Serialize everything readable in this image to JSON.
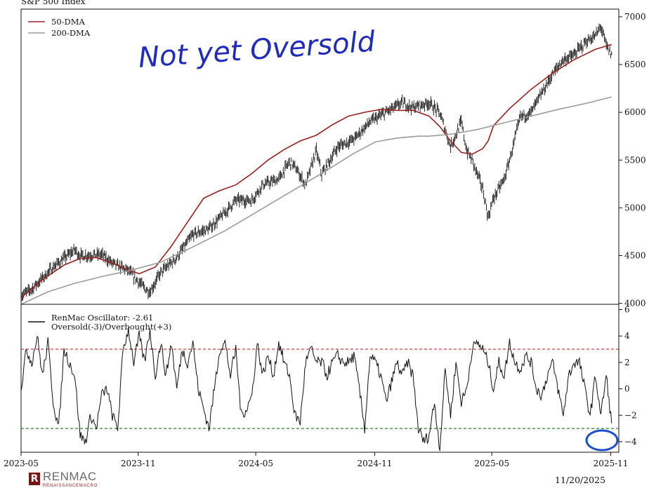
{
  "chart_data": [
    {
      "type": "line",
      "title": "S&P 500 Index",
      "y_axis_side": "right",
      "ylim": [
        3990,
        7080
      ],
      "yticks": [
        4000,
        4500,
        5000,
        5500,
        6000,
        6500,
        7000
      ],
      "legend_position": "top-left",
      "annotation": "Not yet Oversold",
      "x_range": [
        "2023-05",
        "2025-11"
      ],
      "series": [
        {
          "name": "",
          "color": "#111111",
          "kind": "ohlc-close",
          "anchors": [
            [
              0,
              4080
            ],
            [
              2,
              4150
            ],
            [
              6,
              4380
            ],
            [
              10,
              4560
            ],
            [
              11,
              4500
            ],
            [
              15,
              4510
            ],
            [
              17,
              4420
            ],
            [
              20,
              4340
            ],
            [
              23,
              4160
            ],
            [
              24,
              4120
            ],
            [
              26,
              4320
            ],
            [
              29,
              4480
            ],
            [
              32,
              4720
            ],
            [
              35,
              4780
            ],
            [
              38,
              4950
            ],
            [
              40,
              5080
            ],
            [
              43,
              5080
            ],
            [
              45,
              5240
            ],
            [
              48,
              5300
            ],
            [
              50,
              5480
            ],
            [
              51,
              5430
            ],
            [
              53,
              5240
            ],
            [
              55,
              5600
            ],
            [
              56,
              5350
            ],
            [
              59,
              5640
            ],
            [
              62,
              5720
            ],
            [
              65,
              5900
            ],
            [
              68,
              6000
            ],
            [
              71,
              6100
            ],
            [
              73,
              6050
            ],
            [
              76,
              6100
            ],
            [
              78,
              5990
            ],
            [
              80,
              5640
            ],
            [
              82,
              5900
            ],
            [
              83,
              5600
            ],
            [
              84,
              5500
            ],
            [
              86,
              5200
            ],
            [
              87,
              4900
            ],
            [
              88,
              5100
            ],
            [
              90,
              5300
            ],
            [
              91,
              5500
            ],
            [
              93,
              5950
            ],
            [
              95,
              6000
            ],
            [
              97,
              6200
            ],
            [
              99,
              6400
            ],
            [
              101,
              6550
            ],
            [
              103,
              6600
            ],
            [
              105,
              6730
            ],
            [
              107,
              6800
            ],
            [
              108,
              6900
            ],
            [
              109,
              6700
            ],
            [
              110,
              6600
            ]
          ]
        },
        {
          "name": "50-DMA",
          "color": "#9b2020",
          "anchors": [
            [
              0,
              4060
            ],
            [
              4,
              4250
            ],
            [
              8,
              4400
            ],
            [
              11,
              4470
            ],
            [
              14,
              4480
            ],
            [
              17,
              4420
            ],
            [
              20,
              4350
            ],
            [
              22,
              4310
            ],
            [
              25,
              4380
            ],
            [
              28,
              4600
            ],
            [
              31,
              4850
            ],
            [
              34,
              5100
            ],
            [
              37,
              5180
            ],
            [
              40,
              5240
            ],
            [
              43,
              5360
            ],
            [
              46,
              5500
            ],
            [
              49,
              5610
            ],
            [
              52,
              5700
            ],
            [
              55,
              5760
            ],
            [
              58,
              5870
            ],
            [
              61,
              5960
            ],
            [
              64,
              6000
            ],
            [
              67,
              6030
            ],
            [
              70,
              6020
            ],
            [
              73,
              6020
            ],
            [
              76,
              5960
            ],
            [
              78,
              5850
            ],
            [
              80,
              5700
            ],
            [
              82,
              5580
            ],
            [
              84,
              5560
            ],
            [
              86,
              5620
            ],
            [
              87,
              5700
            ],
            [
              88,
              5860
            ],
            [
              91,
              6040
            ],
            [
              95,
              6240
            ],
            [
              99,
              6410
            ],
            [
              103,
              6550
            ],
            [
              107,
              6660
            ],
            [
              110,
              6710
            ]
          ]
        },
        {
          "name": "200-DMA",
          "color": "#9c9c9c",
          "anchors": [
            [
              0,
              3990
            ],
            [
              5,
              4120
            ],
            [
              10,
              4210
            ],
            [
              15,
              4280
            ],
            [
              20,
              4340
            ],
            [
              26,
              4430
            ],
            [
              32,
              4590
            ],
            [
              38,
              4760
            ],
            [
              44,
              4960
            ],
            [
              50,
              5160
            ],
            [
              56,
              5360
            ],
            [
              62,
              5570
            ],
            [
              66,
              5690
            ],
            [
              70,
              5730
            ],
            [
              74,
              5750
            ],
            [
              76,
              5750
            ],
            [
              80,
              5770
            ],
            [
              85,
              5820
            ],
            [
              90,
              5890
            ],
            [
              95,
              5960
            ],
            [
              100,
              6030
            ],
            [
              105,
              6090
            ],
            [
              110,
              6160
            ]
          ]
        }
      ]
    },
    {
      "type": "line",
      "title": "",
      "y_axis_side": "right",
      "ylim": [
        -4.8,
        6.4
      ],
      "yticks": [
        -4,
        -2,
        0,
        2,
        4,
        6
      ],
      "reference_lines": [
        {
          "value": 3,
          "color": "#d02a2a",
          "style": "dashed"
        },
        {
          "value": -3,
          "color": "#2a8a2a",
          "style": "dashed"
        }
      ],
      "legend_position": "top-left",
      "legend_lines": [
        "RenMac Oscillator: -2.61",
        "Oversold(-3)/Overbought(+3)"
      ],
      "series": [
        {
          "name": "RenMac Oscillator",
          "color": "#111111",
          "anchors": [
            [
              0,
              0
            ],
            [
              1,
              3
            ],
            [
              2,
              2
            ],
            [
              3,
              4
            ],
            [
              4,
              1
            ],
            [
              5,
              3.5
            ],
            [
              6,
              -1
            ],
            [
              7,
              -3
            ],
            [
              8,
              3
            ],
            [
              10,
              1
            ],
            [
              11,
              -3.5
            ],
            [
              12,
              -4
            ],
            [
              13,
              -2
            ],
            [
              14,
              -3
            ],
            [
              15,
              -0.5
            ],
            [
              16,
              0
            ],
            [
              17,
              -2
            ],
            [
              18,
              -3
            ],
            [
              19,
              3
            ],
            [
              20,
              4.5
            ],
            [
              21,
              2
            ],
            [
              22,
              4
            ],
            [
              23,
              2
            ],
            [
              24,
              4.5
            ],
            [
              25,
              1
            ],
            [
              26,
              3.5
            ],
            [
              27,
              1
            ],
            [
              28,
              3.5
            ],
            [
              29,
              0
            ],
            [
              30,
              3
            ],
            [
              31,
              2
            ],
            [
              32,
              3.5
            ],
            [
              33,
              0
            ],
            [
              35,
              -3
            ],
            [
              36,
              0
            ],
            [
              37,
              3
            ],
            [
              38,
              3.5
            ],
            [
              39,
              1
            ],
            [
              40,
              3
            ],
            [
              41,
              -2
            ],
            [
              42,
              -1.5
            ],
            [
              43,
              -0.5
            ],
            [
              44,
              3.5
            ],
            [
              45,
              1
            ],
            [
              46,
              2.5
            ],
            [
              47,
              1
            ],
            [
              48,
              3.5
            ],
            [
              49,
              2
            ],
            [
              50,
              1
            ],
            [
              51,
              -2
            ],
            [
              52,
              -2.5
            ],
            [
              53,
              2
            ],
            [
              54,
              3
            ],
            [
              55,
              2
            ],
            [
              56,
              2
            ],
            [
              57,
              1
            ],
            [
              58,
              2
            ],
            [
              59,
              2.5
            ],
            [
              60,
              2
            ],
            [
              61,
              2
            ],
            [
              62,
              2.5
            ],
            [
              63,
              0
            ],
            [
              64,
              -3
            ],
            [
              65,
              2.5
            ],
            [
              66,
              2
            ],
            [
              67,
              1
            ],
            [
              68,
              -1
            ],
            [
              70,
              2
            ],
            [
              71,
              1
            ],
            [
              72,
              2
            ],
            [
              73,
              1
            ],
            [
              74,
              -3
            ],
            [
              75,
              -4
            ],
            [
              76,
              -3.5
            ],
            [
              77,
              -1
            ],
            [
              78,
              -4.5
            ],
            [
              79,
              1.5
            ],
            [
              80,
              -2
            ],
            [
              81,
              2
            ],
            [
              82,
              -1
            ],
            [
              83,
              0
            ],
            [
              84,
              3
            ],
            [
              85,
              3.5
            ],
            [
              86,
              3
            ],
            [
              87,
              2
            ],
            [
              88,
              0
            ],
            [
              89,
              2
            ],
            [
              90,
              1
            ],
            [
              91,
              3.5
            ],
            [
              92,
              2
            ],
            [
              93,
              1.5
            ],
            [
              94,
              2.5
            ],
            [
              95,
              2
            ],
            [
              96,
              0
            ],
            [
              97,
              -0.5
            ],
            [
              98,
              1
            ],
            [
              99,
              2
            ],
            [
              100,
              0
            ],
            [
              101,
              -2
            ],
            [
              102,
              1
            ],
            [
              103,
              2
            ],
            [
              104,
              2
            ],
            [
              105,
              0
            ],
            [
              106,
              -2
            ],
            [
              107,
              1
            ],
            [
              108,
              -2
            ],
            [
              109,
              1
            ],
            [
              110,
              -2.61
            ]
          ]
        }
      ]
    }
  ],
  "x_axis": {
    "ticks": [
      {
        "label": "2023-05",
        "t": 0
      },
      {
        "label": "2023-11",
        "t": 26.1
      },
      {
        "label": "2024-05",
        "t": 52.3
      },
      {
        "label": "2024-11",
        "t": 78.8
      },
      {
        "label": "2025-05",
        "t": 104.9
      },
      {
        "label": "2025-11",
        "t": 131.4
      }
    ],
    "t_max": 133.2
  },
  "footer": {
    "brand": "RENMAC",
    "brand_sub": "RENAISSANCEMACRO",
    "date": "11/20/2025"
  }
}
